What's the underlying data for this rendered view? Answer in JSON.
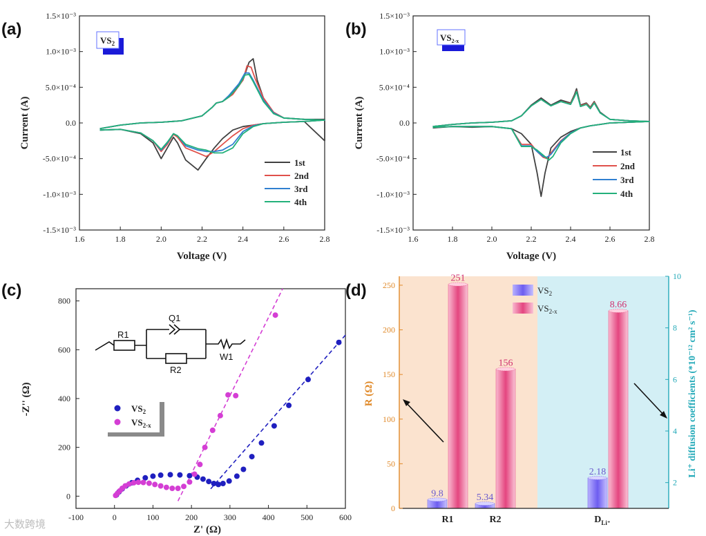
{
  "chart_data": [
    {
      "panel": "(a)",
      "type": "line",
      "title": "",
      "inset_label": "VS2",
      "xlabel": "Voltage (V)",
      "ylabel": "Current (A)",
      "xlim": [
        1.6,
        2.8
      ],
      "ylim": [
        -0.0015,
        0.0015
      ],
      "xticks": [
        1.6,
        1.8,
        2.0,
        2.2,
        2.4,
        2.6,
        2.8
      ],
      "xtick_labels": [
        "1.6",
        "1.8",
        "2.0",
        "2.2",
        "2.4",
        "2.6",
        "2.8"
      ],
      "ytick_labels": [
        "1.5×10⁻³",
        "1.0×10⁻³",
        "5.0×10⁻⁴",
        "0.0",
        "-5.0×10⁻⁴",
        "-1.0×10⁻³",
        "-1.5×10⁻³"
      ],
      "yticks": [
        0.0015,
        0.001,
        0.0005,
        0,
        -0.0005,
        -0.001,
        -0.0015
      ],
      "legend_position": "bottom-right",
      "series": [
        {
          "name": "1st",
          "color": "#404040",
          "x": [
            1.7,
            1.8,
            1.9,
            1.96,
            2.0,
            2.03,
            2.06,
            2.08,
            2.12,
            2.18,
            2.22,
            2.26,
            2.3,
            2.35,
            2.4,
            2.45,
            2.5,
            2.55,
            2.6,
            2.7,
            2.8,
            2.8,
            2.7,
            2.6,
            2.55,
            2.5,
            2.47,
            2.45,
            2.43,
            2.4,
            2.35,
            2.3,
            2.27,
            2.25,
            2.2,
            2.1,
            2.0,
            1.9,
            1.8,
            1.7
          ],
          "y": [
            -0.0001,
            -9e-05,
            -0.00015,
            -0.00028,
            -0.0005,
            -0.00035,
            -0.0002,
            -0.00028,
            -0.00052,
            -0.00066,
            -0.0005,
            -0.00035,
            -0.00022,
            -0.0001,
            -5e-05,
            -3e-05,
            -1e-05,
            0,
            1e-05,
            2e-05,
            -0.00025,
            5e-05,
            5e-05,
            7e-05,
            0.00015,
            0.00035,
            0.0006,
            0.0009,
            0.00085,
            0.0006,
            0.00042,
            0.0003,
            0.00028,
            0.00022,
            0.0001,
            3e-05,
            1e-05,
            0,
            -3e-05,
            -8e-05
          ]
        },
        {
          "name": "2nd",
          "color": "#e0504a",
          "x": [
            1.7,
            1.8,
            1.9,
            1.96,
            2.0,
            2.03,
            2.06,
            2.08,
            2.12,
            2.18,
            2.22,
            2.26,
            2.3,
            2.35,
            2.4,
            2.45,
            2.5,
            2.55,
            2.6,
            2.7,
            2.8,
            2.7,
            2.6,
            2.55,
            2.5,
            2.46,
            2.44,
            2.42,
            2.4,
            2.35,
            2.3,
            2.27,
            2.25,
            2.2,
            2.1,
            2.0,
            1.9,
            1.8,
            1.7
          ],
          "y": [
            -0.0001,
            -9e-05,
            -0.00014,
            -0.00025,
            -0.0004,
            -0.0003,
            -0.00016,
            -0.0002,
            -0.00035,
            -0.00042,
            -0.00047,
            -0.0004,
            -0.0003,
            -0.00018,
            -8e-05,
            -3e-05,
            -1e-05,
            0,
            1e-05,
            2e-05,
            4e-05,
            5e-05,
            7e-05,
            0.00015,
            0.00035,
            0.00062,
            0.00078,
            0.0008,
            0.0006,
            0.0004,
            0.0003,
            0.00028,
            0.00022,
            0.0001,
            3e-05,
            1e-05,
            0,
            -3e-05,
            -8e-05
          ]
        },
        {
          "name": "3rd",
          "color": "#2f7fd0",
          "x": [
            1.7,
            1.8,
            1.9,
            1.96,
            2.0,
            2.03,
            2.06,
            2.08,
            2.12,
            2.18,
            2.22,
            2.26,
            2.3,
            2.35,
            2.4,
            2.45,
            2.5,
            2.55,
            2.6,
            2.7,
            2.8,
            2.7,
            2.6,
            2.55,
            2.5,
            2.45,
            2.43,
            2.41,
            2.38,
            2.33,
            2.3,
            2.27,
            2.25,
            2.2,
            2.1,
            2.0,
            1.9,
            1.8,
            1.7
          ],
          "y": [
            -0.0001,
            -9e-05,
            -0.00014,
            -0.00025,
            -0.00038,
            -0.00028,
            -0.00015,
            -0.00018,
            -0.00032,
            -0.00038,
            -0.0004,
            -0.0004,
            -0.00038,
            -0.0003,
            -0.00012,
            -4e-05,
            -1e-05,
            0,
            1e-05,
            2e-05,
            4e-05,
            5e-05,
            7e-05,
            0.00014,
            0.00032,
            0.0006,
            0.0007,
            0.0007,
            0.00055,
            0.00038,
            0.0003,
            0.00028,
            0.00022,
            0.0001,
            3e-05,
            1e-05,
            0,
            -3e-05,
            -8e-05
          ]
        },
        {
          "name": "4th",
          "color": "#22b07a",
          "x": [
            1.7,
            1.8,
            1.9,
            1.96,
            2.0,
            2.03,
            2.06,
            2.08,
            2.12,
            2.18,
            2.22,
            2.26,
            2.3,
            2.35,
            2.4,
            2.45,
            2.5,
            2.55,
            2.6,
            2.7,
            2.8,
            2.7,
            2.6,
            2.55,
            2.5,
            2.45,
            2.43,
            2.41,
            2.38,
            2.33,
            2.3,
            2.27,
            2.25,
            2.2,
            2.1,
            2.0,
            1.9,
            1.8,
            1.7
          ],
          "y": [
            -0.0001,
            -9e-05,
            -0.00014,
            -0.00025,
            -0.00037,
            -0.00027,
            -0.00015,
            -0.00018,
            -0.0003,
            -0.00036,
            -0.00038,
            -0.00042,
            -0.00042,
            -0.00035,
            -0.00015,
            -5e-05,
            -1e-05,
            0,
            1e-05,
            2e-05,
            4e-05,
            5e-05,
            7e-05,
            0.00013,
            0.0003,
            0.00058,
            0.00068,
            0.00067,
            0.00052,
            0.00036,
            0.0003,
            0.00028,
            0.00022,
            0.0001,
            3e-05,
            1e-05,
            0,
            -3e-05,
            -8e-05
          ]
        }
      ]
    },
    {
      "panel": "(b)",
      "type": "line",
      "title": "",
      "inset_label": "VS2-x",
      "xlabel": "Voltage (V)",
      "ylabel": "Current (A)",
      "xlim": [
        1.6,
        2.8
      ],
      "ylim": [
        -0.0015,
        0.0015
      ],
      "xticks": [
        1.6,
        1.8,
        2.0,
        2.2,
        2.4,
        2.6,
        2.8
      ],
      "xtick_labels": [
        "1.6",
        "1.8",
        "2.0",
        "2.2",
        "2.4",
        "2.6",
        "2.8"
      ],
      "ytick_labels": [
        "1.5×10⁻³",
        "1.0×10⁻³",
        "5.0×10⁻⁴",
        "0.0",
        "-5.0×10⁻⁴",
        "-1.0×10⁻³",
        "-1.5×10⁻³"
      ],
      "yticks": [
        0.0015,
        0.001,
        0.0005,
        0,
        -0.0005,
        -0.001,
        -0.0015
      ],
      "legend_position": "bottom-right",
      "series": [
        {
          "name": "1st",
          "color": "#404040",
          "x": [
            1.7,
            1.8,
            1.9,
            2.0,
            2.1,
            2.15,
            2.2,
            2.23,
            2.25,
            2.27,
            2.3,
            2.35,
            2.4,
            2.45,
            2.5,
            2.55,
            2.6,
            2.7,
            2.8,
            2.7,
            2.6,
            2.55,
            2.52,
            2.5,
            2.48,
            2.45,
            2.43,
            2.42,
            2.4,
            2.35,
            2.3,
            2.25,
            2.2,
            2.15,
            2.1,
            2.0,
            1.9,
            1.8,
            1.7
          ],
          "y": [
            -7e-05,
            -5e-05,
            -6e-05,
            -5e-05,
            -8e-05,
            -0.00015,
            -0.0003,
            -0.0007,
            -0.00103,
            -0.0007,
            -0.00035,
            -0.0002,
            -0.00012,
            -7e-05,
            -4e-05,
            -2e-05,
            0,
            1e-05,
            2e-05,
            3e-05,
            5e-05,
            0.00015,
            0.0003,
            0.00022,
            0.00028,
            0.00025,
            0.00048,
            0.0004,
            0.00028,
            0.00032,
            0.00025,
            0.00035,
            0.00025,
            0.0001,
            3e-05,
            1e-05,
            0,
            -2e-05,
            -5e-05
          ]
        },
        {
          "name": "2nd",
          "color": "#e0504a",
          "x": [
            1.7,
            1.8,
            1.9,
            2.0,
            2.1,
            2.15,
            2.2,
            2.23,
            2.26,
            2.28,
            2.3,
            2.35,
            2.4,
            2.45,
            2.5,
            2.55,
            2.6,
            2.7,
            2.8,
            2.7,
            2.6,
            2.55,
            2.52,
            2.5,
            2.48,
            2.45,
            2.43,
            2.42,
            2.4,
            2.35,
            2.3,
            2.25,
            2.2,
            2.15,
            2.1,
            2.0,
            1.9,
            1.8,
            1.7
          ],
          "y": [
            -6e-05,
            -5e-05,
            -5e-05,
            -5e-05,
            -8e-05,
            -0.0003,
            -0.0003,
            -0.0004,
            -0.00048,
            -0.0005,
            -0.00042,
            -0.00025,
            -0.00014,
            -7e-05,
            -4e-05,
            -2e-05,
            0,
            1e-05,
            2e-05,
            3e-05,
            5e-05,
            0.00014,
            0.00029,
            0.00021,
            0.00027,
            0.00024,
            0.00045,
            0.00038,
            0.00027,
            0.0003,
            0.00024,
            0.00033,
            0.00024,
            0.0001,
            3e-05,
            1e-05,
            0,
            -2e-05,
            -5e-05
          ]
        },
        {
          "name": "3rd",
          "color": "#2f7fd0",
          "x": [
            1.7,
            1.8,
            1.9,
            2.0,
            2.1,
            2.15,
            2.2,
            2.23,
            2.26,
            2.28,
            2.3,
            2.35,
            2.4,
            2.45,
            2.5,
            2.55,
            2.6,
            2.7,
            2.8,
            2.7,
            2.6,
            2.55,
            2.52,
            2.5,
            2.48,
            2.45,
            2.43,
            2.42,
            2.4,
            2.35,
            2.3,
            2.25,
            2.2,
            2.15,
            2.1,
            2.0,
            1.9,
            1.8,
            1.7
          ],
          "y": [
            -6e-05,
            -5e-05,
            -5e-05,
            -5e-05,
            -8e-05,
            -0.00032,
            -0.00032,
            -0.0004,
            -0.00047,
            -0.00048,
            -0.00044,
            -0.00026,
            -0.00014,
            -7e-05,
            -4e-05,
            -2e-05,
            0,
            1e-05,
            2e-05,
            3e-05,
            5e-05,
            0.00014,
            0.00028,
            0.0002,
            0.00026,
            0.00023,
            0.00044,
            0.00037,
            0.00026,
            0.0003,
            0.00024,
            0.00033,
            0.00024,
            0.0001,
            3e-05,
            1e-05,
            0,
            -2e-05,
            -5e-05
          ]
        },
        {
          "name": "4th",
          "color": "#22b07a",
          "x": [
            1.7,
            1.8,
            1.9,
            2.0,
            2.1,
            2.15,
            2.2,
            2.23,
            2.26,
            2.29,
            2.31,
            2.35,
            2.4,
            2.45,
            2.5,
            2.55,
            2.6,
            2.7,
            2.8,
            2.7,
            2.6,
            2.55,
            2.52,
            2.5,
            2.48,
            2.45,
            2.43,
            2.42,
            2.4,
            2.35,
            2.3,
            2.25,
            2.2,
            2.15,
            2.1,
            2.0,
            1.9,
            1.8,
            1.7
          ],
          "y": [
            -6e-05,
            -5e-05,
            -5e-05,
            -5e-05,
            -8e-05,
            -0.00033,
            -0.00033,
            -0.00038,
            -0.00045,
            -0.00052,
            -0.00047,
            -0.00028,
            -0.00015,
            -7e-05,
            -4e-05,
            -2e-05,
            0,
            1e-05,
            2e-05,
            3e-05,
            5e-05,
            0.00014,
            0.00028,
            0.0002,
            0.00026,
            0.00023,
            0.00044,
            0.00037,
            0.00026,
            0.0003,
            0.00024,
            0.00033,
            0.00024,
            0.0001,
            3e-05,
            1e-05,
            0,
            -2e-05,
            -5e-05
          ]
        }
      ]
    },
    {
      "panel": "(c)",
      "type": "scatter",
      "title": "",
      "xlabel": "Z' (Ω)",
      "ylabel": "-Z'' (Ω)",
      "xlim": [
        -100,
        600
      ],
      "ylim": [
        -50,
        850
      ],
      "xticks": [
        -100,
        0,
        100,
        200,
        300,
        400,
        500,
        600
      ],
      "xtick_labels": [
        "-100",
        "0",
        "100",
        "200",
        "300",
        "400",
        "500",
        "600"
      ],
      "yticks": [
        0,
        200,
        400,
        600,
        800
      ],
      "ytick_labels": [
        "0",
        "200",
        "400",
        "600",
        "800"
      ],
      "legend_position": "middle-left",
      "circuit_labels": {
        "r1": "R1",
        "q1": "Q1",
        "r2": "R2",
        "w1": "W1"
      },
      "series": [
        {
          "name": "VS2",
          "color": "#1f1fbf",
          "x": [
            5,
            12,
            20,
            30,
            45,
            60,
            80,
            100,
            120,
            145,
            170,
            195,
            215,
            230,
            245,
            258,
            270,
            282,
            298,
            318,
            335,
            357,
            382,
            415,
            453,
            503,
            583
          ],
          "y": [
            5,
            18,
            30,
            42,
            55,
            65,
            75,
            82,
            86,
            88,
            87,
            84,
            78,
            70,
            60,
            52,
            48,
            52,
            62,
            82,
            110,
            162,
            218,
            288,
            372,
            478,
            630
          ],
          "fit_x": [
            250,
            600
          ],
          "fit_y": [
            30,
            660
          ]
        },
        {
          "name": "VS2-x",
          "color": "#d43ed4",
          "x": [
            3,
            8,
            14,
            20,
            28,
            38,
            50,
            62,
            75,
            90,
            105,
            120,
            135,
            150,
            165,
            180,
            195,
            208,
            222,
            235,
            255,
            275,
            295,
            315,
            418
          ],
          "y": [
            3,
            12,
            22,
            32,
            42,
            50,
            55,
            57,
            56,
            53,
            48,
            42,
            36,
            32,
            32,
            40,
            58,
            90,
            130,
            200,
            270,
            330,
            415,
            412,
            742
          ],
          "fit_x": [
            165,
            437
          ],
          "fit_y": [
            -20,
            850
          ]
        }
      ]
    },
    {
      "panel": "(d)",
      "type": "bar",
      "title": "",
      "categories": [
        "R1",
        "R2",
        "D_Li+"
      ],
      "ylabel_left": "R (Ω)",
      "ylabel_right": "Li⁺ diffusion coefficients (*10⁻¹² cm² s⁻¹)",
      "ylim_left": [
        0,
        260
      ],
      "ylim_right": [
        1,
        10
      ],
      "yticks_left": [
        0,
        50,
        100,
        150,
        200,
        250
      ],
      "ytick_labels_left": [
        "0",
        "50",
        "100",
        "150",
        "200",
        "250"
      ],
      "yticks_right": [
        2,
        4,
        6,
        8,
        10
      ],
      "ytick_labels_right": [
        "2",
        "4",
        "6",
        "8",
        "10"
      ],
      "legend_position": "top-center",
      "series": [
        {
          "name": "VS2",
          "color": "#8a7ff0",
          "values": [
            9.8,
            5.34,
            2.18
          ],
          "labels": [
            "9.8",
            "5.34",
            "2.18"
          ],
          "axis": [
            "left",
            "left",
            "right"
          ]
        },
        {
          "name": "VS2-x",
          "color": "#ec5c92",
          "values": [
            251,
            156,
            8.66
          ],
          "labels": [
            "251",
            "156",
            "8.66"
          ],
          "axis": [
            "left",
            "left",
            "right"
          ]
        }
      ]
    }
  ],
  "panel_labels": [
    "(a)",
    "(b)",
    "(c)",
    "(d)"
  ],
  "legend": {
    "ab": [
      "1st",
      "2nd",
      "3rd",
      "4th"
    ],
    "c_vs2": "VS",
    "c_vs2_sub": "2",
    "c_vs2x": "VS",
    "c_vs2x_sub": "2-x"
  },
  "inset": {
    "a_main": "VS",
    "a_sub": "2",
    "b_main": "VS",
    "b_sub": "2-x"
  },
  "axis_text": {
    "voltage": "Voltage (V)",
    "current": "Current (A)",
    "zre": "Z' (Ω)",
    "zim": "-Z'' (Ω)",
    "r_ohm": "R (Ω)",
    "diff": "Li⁺ diffusion coefficients (*10⁻¹² cm² s⁻¹)",
    "cat_d_main": "D",
    "cat_d_sub": "Li⁺"
  },
  "watermark": "大数跨境"
}
